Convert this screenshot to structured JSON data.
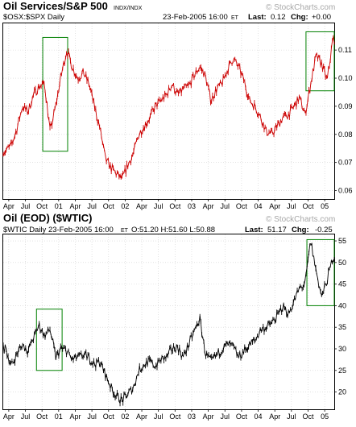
{
  "chart_data": [
    {
      "type": "line",
      "title": "Oil Services/S&P 500",
      "exchange": "INDX/INDX",
      "symbol_line": "$OSX:$SPX Daily",
      "date": "23-Feb-2005 16:00",
      "date_tz": "ET",
      "last_label": "Last:",
      "last_value": "0.12",
      "chg_label": "Chg:",
      "chg_value": "+0.00",
      "chg_color": "#00b000",
      "watermark": "© StockCharts.com",
      "line_color": "#cc0000",
      "box_color": "#008000",
      "yticks": [
        "0.11",
        "0.10",
        "0.09",
        "0.08",
        "0.07",
        "0.06"
      ],
      "ytick_values": [
        0.11,
        0.1,
        0.09,
        0.08,
        0.07,
        0.06
      ],
      "ylim": [
        0.057,
        0.1195
      ],
      "xtick_labels": [
        "Apr",
        "Jul",
        "Oct",
        "01",
        "Apr",
        "Jul",
        "Oct",
        "02",
        "Apr",
        "Jul",
        "Oct",
        "03",
        "Apr",
        "Jul",
        "Oct",
        "04",
        "Apr",
        "Jul",
        "Oct",
        "05"
      ],
      "x_range": [
        "2000-03-01",
        "2005-02-23"
      ],
      "highlight_boxes": [
        {
          "x_start": "2000-10-05",
          "x_end": "2001-02-20",
          "y_low": 0.074,
          "y_high": 0.1145
        },
        {
          "x_start": "2004-09-20",
          "x_end": "2005-02-23",
          "y_low": 0.0955,
          "y_high": 0.1165
        }
      ],
      "x": [
        "2000-03",
        "2000-04",
        "2000-05",
        "2000-06",
        "2000-07",
        "2000-08",
        "2000-09",
        "2000-10",
        "2000-11",
        "2000-12",
        "2001-01",
        "2001-02",
        "2001-03",
        "2001-04",
        "2001-05",
        "2001-06",
        "2001-07",
        "2001-08",
        "2001-09",
        "2001-10",
        "2001-11",
        "2001-12",
        "2002-01",
        "2002-02",
        "2002-03",
        "2002-04",
        "2002-05",
        "2002-06",
        "2002-07",
        "2002-08",
        "2002-09",
        "2002-10",
        "2002-11",
        "2002-12",
        "2003-01",
        "2003-02",
        "2003-03",
        "2003-04",
        "2003-05",
        "2003-06",
        "2003-07",
        "2003-08",
        "2003-09",
        "2003-10",
        "2003-11",
        "2003-12",
        "2004-01",
        "2004-02",
        "2004-03",
        "2004-04",
        "2004-05",
        "2004-06",
        "2004-07",
        "2004-08",
        "2004-09",
        "2004-10",
        "2004-11",
        "2004-12",
        "2005-01",
        "2005-02"
      ],
      "values": [
        0.074,
        0.076,
        0.082,
        0.09,
        0.088,
        0.094,
        0.097,
        0.098,
        0.081,
        0.09,
        0.101,
        0.11,
        0.104,
        0.1,
        0.102,
        0.098,
        0.09,
        0.082,
        0.071,
        0.068,
        0.066,
        0.064,
        0.069,
        0.073,
        0.08,
        0.083,
        0.086,
        0.09,
        0.092,
        0.094,
        0.098,
        0.094,
        0.096,
        0.097,
        0.101,
        0.104,
        0.101,
        0.092,
        0.096,
        0.098,
        0.103,
        0.107,
        0.104,
        0.099,
        0.092,
        0.09,
        0.086,
        0.081,
        0.08,
        0.083,
        0.086,
        0.087,
        0.09,
        0.093,
        0.087,
        0.098,
        0.108,
        0.105,
        0.099,
        0.114
      ]
    },
    {
      "type": "line",
      "title": "Oil (EOD) ($WTIC)",
      "symbol_line": "$WTIC Daily 23-Feb-2005 16:00",
      "symbol_tz": "ET",
      "ohlc": "O:51.20 H:51.60 L:50.88",
      "last_label": "Last:",
      "last_value": "51.17",
      "chg_label": "Chg:",
      "chg_value": "-0.25",
      "chg_color": "#cc0000",
      "watermark": "© StockCharts.com",
      "line_color": "#000000",
      "box_color": "#008000",
      "yticks": [
        "55",
        "50",
        "45",
        "40",
        "35",
        "30",
        "25",
        "20"
      ],
      "ytick_values": [
        55,
        50,
        45,
        40,
        35,
        30,
        25,
        20
      ],
      "ylim": [
        16.0,
        56.5
      ],
      "xtick_labels": [
        "Apr",
        "Jul",
        "Oct",
        "01",
        "Apr",
        "Jul",
        "Oct",
        "02",
        "Apr",
        "Jul",
        "Oct",
        "03",
        "Apr",
        "Jul",
        "Oct",
        "04",
        "Apr",
        "Jul",
        "Oct",
        "05"
      ],
      "x_range": [
        "2000-03-01",
        "2005-02-23"
      ],
      "highlight_boxes": [
        {
          "x_start": "2000-09-01",
          "x_end": "2001-01-20",
          "y_low": 25.0,
          "y_high": 39.2
        },
        {
          "x_start": "2004-09-25",
          "x_end": "2005-02-23",
          "y_low": 40.0,
          "y_high": 55.3
        }
      ],
      "x": [
        "2000-03",
        "2000-04",
        "2000-05",
        "2000-06",
        "2000-07",
        "2000-08",
        "2000-09",
        "2000-10",
        "2000-11",
        "2000-12",
        "2001-01",
        "2001-02",
        "2001-03",
        "2001-04",
        "2001-05",
        "2001-06",
        "2001-07",
        "2001-08",
        "2001-09",
        "2001-10",
        "2001-11",
        "2001-12",
        "2002-01",
        "2002-02",
        "2002-03",
        "2002-04",
        "2002-05",
        "2002-06",
        "2002-07",
        "2002-08",
        "2002-09",
        "2002-10",
        "2002-11",
        "2002-12",
        "2003-01",
        "2003-02",
        "2003-03",
        "2003-04",
        "2003-05",
        "2003-06",
        "2003-07",
        "2003-08",
        "2003-09",
        "2003-10",
        "2003-11",
        "2003-12",
        "2004-01",
        "2004-02",
        "2004-03",
        "2004-04",
        "2004-05",
        "2004-06",
        "2004-07",
        "2004-08",
        "2004-09",
        "2004-10",
        "2004-11",
        "2004-12",
        "2005-01",
        "2005-02"
      ],
      "values": [
        30.0,
        26.0,
        28.8,
        31.0,
        29.5,
        32.5,
        35.5,
        33.0,
        34.5,
        28.0,
        30.0,
        29.5,
        27.5,
        28.0,
        28.5,
        28.0,
        26.5,
        27.0,
        24.0,
        21.0,
        19.0,
        18.0,
        19.5,
        21.0,
        25.0,
        26.5,
        27.0,
        26.0,
        27.5,
        28.0,
        30.0,
        30.5,
        28.0,
        31.0,
        34.0,
        37.0,
        29.0,
        27.0,
        28.5,
        30.0,
        31.0,
        30.5,
        28.0,
        29.5,
        31.0,
        32.0,
        34.5,
        35.0,
        36.0,
        37.5,
        40.0,
        38.0,
        41.0,
        44.0,
        45.0,
        55.0,
        48.0,
        42.0,
        46.0,
        51.2
      ]
    }
  ]
}
